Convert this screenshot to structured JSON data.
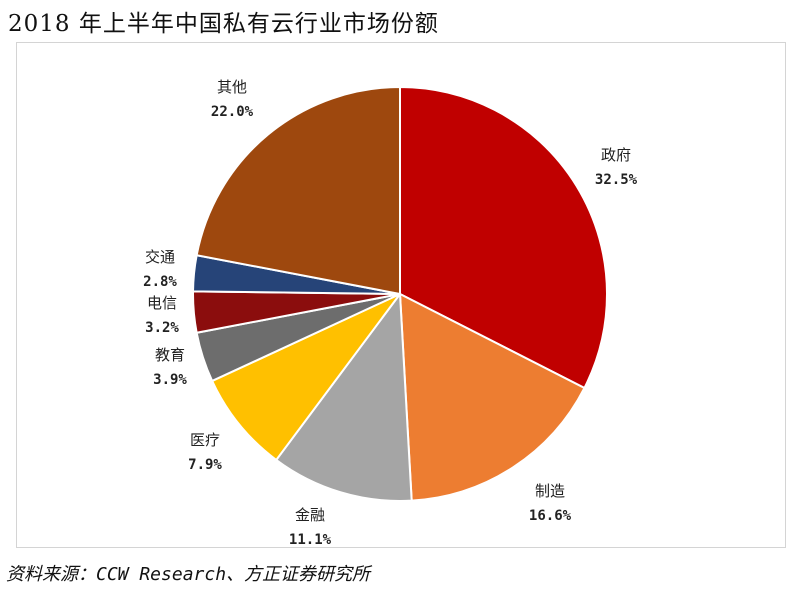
{
  "title": "2018 年上半年中国私有云行业市场份额",
  "source": "资料来源：CCW Research、方正证券研究所",
  "chart_data": {
    "type": "pie",
    "title": "2018 年上半年中国私有云行业市场份额",
    "slices": [
      {
        "label": "政府",
        "value": 32.5,
        "display": "32.5%",
        "color": "#c00000"
      },
      {
        "label": "制造",
        "value": 16.6,
        "display": "16.6%",
        "color": "#ed7d31"
      },
      {
        "label": "金融",
        "value": 11.1,
        "display": "11.1%",
        "color": "#a5a5a5"
      },
      {
        "label": "医疗",
        "value": 7.9,
        "display": "7.9%",
        "color": "#ffc000"
      },
      {
        "label": "教育",
        "value": 3.9,
        "display": "3.9%",
        "color": "#6d6d6d"
      },
      {
        "label": "电信",
        "value": 3.2,
        "display": "3.2%",
        "color": "#8b0d0d"
      },
      {
        "label": "交通",
        "value": 2.8,
        "display": "2.8%",
        "color": "#264478"
      },
      {
        "label": "其他",
        "value": 22.0,
        "display": "22.0%",
        "color": "#9e480e"
      }
    ]
  }
}
